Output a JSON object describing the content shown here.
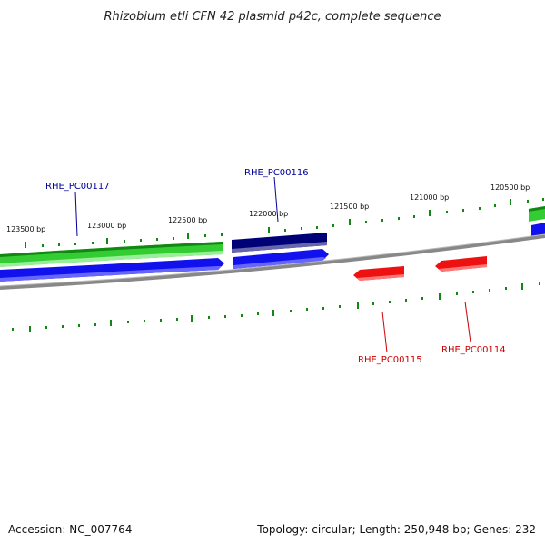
{
  "title": "Rhizobium etli CFN 42 plasmid p42c, complete sequence",
  "footer": {
    "accession": "Accession: NC_007764",
    "summary": "Topology: circular; Length: 250,948 bp; Genes: 232"
  },
  "colors": {
    "gene_green": "#33cc33",
    "cds_blue": "#1111ee",
    "highlight_navy": "#000077",
    "reverse_red": "#ee1111",
    "tick_green": "#118811",
    "backbone_gray": "#888888",
    "label_blue": "#000099",
    "label_red": "#cc0000"
  },
  "scale_labels": [
    "123500 bp",
    "123000 bp",
    "122500 bp",
    "122000 bp",
    "121500 bp",
    "121000 bp",
    "120500 bp"
  ],
  "gene_labels": [
    {
      "name": "RHE_PC00117",
      "strand": "forward"
    },
    {
      "name": "RHE_PC00116",
      "strand": "forward"
    },
    {
      "name": "RHE_PC00115",
      "strand": "reverse"
    },
    {
      "name": "RHE_PC00114",
      "strand": "reverse"
    }
  ]
}
